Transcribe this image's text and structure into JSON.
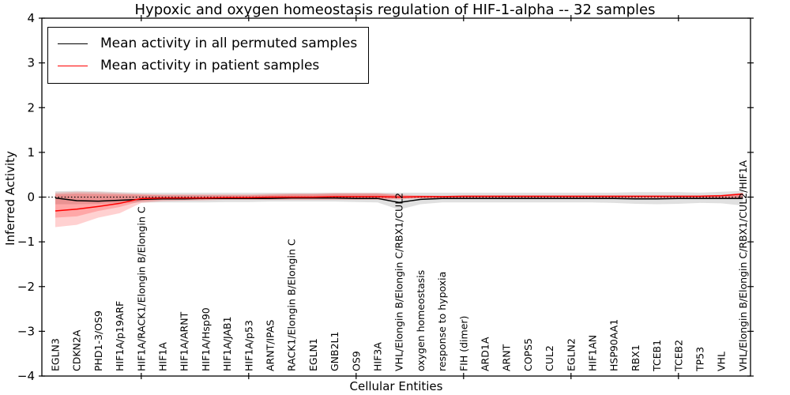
{
  "title": "Hypoxic and oxygen homeostasis regulation of HIF-1-alpha -- 32 samples",
  "axes": {
    "xlabel": "Cellular Entities",
    "ylabel": "Inferred Activity",
    "ylim": [
      -4,
      4
    ],
    "yticks": [
      4,
      3,
      2,
      1,
      0,
      -1,
      -2,
      -3,
      -4
    ],
    "y_tick_labels": [
      "4",
      "3",
      "2",
      "1",
      "0",
      "−1",
      "−2",
      "−3",
      "−4"
    ],
    "x_major_tick_indices": [
      4,
      9,
      14,
      19,
      24,
      29
    ],
    "grid": false
  },
  "legend": {
    "position": "upper left",
    "entries": [
      {
        "label": "Mean activity in all permuted samples",
        "color": "#000000"
      },
      {
        "label": "Mean activity in patient samples",
        "color": "#ff0000"
      }
    ]
  },
  "chart_data": {
    "type": "line",
    "title": "Hypoxic and oxygen homeostasis regulation of HIF-1-alpha -- 32 samples",
    "xlabel": "Cellular Entities",
    "ylabel": "Inferred Activity",
    "ylim": [
      -4,
      4
    ],
    "legend_position": "upper left",
    "grid": false,
    "sample_count_in_title": "32 samples",
    "categories": [
      "EGLN3",
      "CDKN2A",
      "PHD1-3/OS9",
      "HIF1A/p19ARF",
      "HIF1A/RACK1/Elongin B/Elongin C",
      "HIF1A",
      "HIF1A/ARNT",
      "HIF1A/Hsp90",
      "HIF1A/JAB1",
      "HIF1A/p53",
      "ARNT/IPAS",
      "RACK1/Elongin B/Elongin C",
      "EGLN1",
      "GNB2L1",
      "OS9",
      "HIF3A",
      "VHL/Elongin B/Elongin C/RBX1/CUL2",
      "oxygen homeostasis",
      "response to hypoxia",
      "FIH (dimer)",
      "ARD1A",
      "ARNT",
      "COPS5",
      "CUL2",
      "EGLN2",
      "HIF1AN",
      "HSP90AA1",
      "RBX1",
      "TCEB1",
      "TCEB2",
      "TP53",
      "VHL",
      "VHL/Elongin B/Elongin C/RBX1/CUL2/HIF1A"
    ],
    "series": [
      {
        "name": "Mean activity in all permuted samples",
        "color": "#000000",
        "values": [
          -0.02,
          -0.08,
          -0.09,
          -0.07,
          -0.05,
          -0.04,
          -0.04,
          -0.03,
          -0.03,
          -0.03,
          -0.03,
          -0.02,
          -0.02,
          -0.02,
          -0.03,
          -0.03,
          -0.12,
          -0.05,
          -0.03,
          -0.03,
          -0.03,
          -0.03,
          -0.03,
          -0.03,
          -0.03,
          -0.03,
          -0.03,
          -0.04,
          -0.04,
          -0.03,
          -0.03,
          -0.03,
          -0.03
        ]
      },
      {
        "name": "Mean activity in patient samples",
        "color": "#ff0000",
        "values": [
          -0.31,
          -0.27,
          -0.21,
          -0.14,
          -0.03,
          -0.02,
          -0.02,
          -0.02,
          -0.01,
          -0.01,
          0.0,
          0.0,
          0.0,
          0.01,
          0.01,
          0.01,
          0.0,
          0.01,
          0.01,
          0.02,
          0.02,
          0.02,
          0.02,
          0.02,
          0.02,
          0.02,
          0.02,
          0.02,
          0.02,
          0.02,
          0.02,
          0.03,
          0.07
        ]
      }
    ],
    "bands": [
      {
        "name": "permuted-range",
        "color": "#000000",
        "opacity": 0.12,
        "high": [
          0.13,
          0.14,
          0.13,
          0.11,
          0.1,
          0.1,
          0.1,
          0.1,
          0.1,
          0.1,
          0.1,
          0.1,
          0.1,
          0.1,
          0.1,
          0.1,
          0.1,
          0.1,
          0.1,
          0.1,
          0.1,
          0.1,
          0.1,
          0.1,
          0.1,
          0.1,
          0.1,
          0.11,
          0.11,
          0.11,
          0.1,
          0.12,
          0.14
        ],
        "low": [
          -0.16,
          -0.16,
          -0.15,
          -0.13,
          -0.12,
          -0.12,
          -0.12,
          -0.12,
          -0.11,
          -0.11,
          -0.1,
          -0.1,
          -0.1,
          -0.1,
          -0.11,
          -0.12,
          -0.28,
          -0.16,
          -0.12,
          -0.12,
          -0.12,
          -0.12,
          -0.12,
          -0.12,
          -0.12,
          -0.12,
          -0.13,
          -0.15,
          -0.16,
          -0.15,
          -0.13,
          -0.14,
          -0.19
        ]
      },
      {
        "name": "patient-range-outer",
        "color": "#ff0000",
        "opacity": 0.18,
        "high": [
          0.1,
          0.12,
          0.11,
          0.09,
          0.07,
          0.06,
          0.06,
          0.06,
          0.06,
          0.06,
          0.07,
          0.08,
          0.08,
          0.09,
          0.09,
          0.09,
          0.06,
          0.04,
          0.03,
          0.03,
          0.03,
          0.03,
          0.03,
          0.03,
          0.03,
          0.03,
          0.03,
          0.03,
          0.03,
          0.03,
          0.03,
          0.05,
          0.09
        ],
        "low": [
          -0.67,
          -0.62,
          -0.46,
          -0.36,
          -0.13,
          -0.09,
          -0.08,
          -0.07,
          -0.06,
          -0.06,
          -0.06,
          -0.06,
          -0.06,
          -0.06,
          -0.06,
          -0.06,
          -0.05,
          -0.03,
          -0.03,
          -0.03,
          -0.03,
          -0.03,
          -0.03,
          -0.03,
          -0.03,
          -0.03,
          -0.03,
          -0.03,
          -0.03,
          -0.03,
          -0.03,
          -0.03,
          -0.02
        ]
      },
      {
        "name": "patient-range-inner",
        "color": "#ff0000",
        "opacity": 0.2,
        "high": [
          0.06,
          0.08,
          0.07,
          0.06,
          0.05,
          0.04,
          0.04,
          0.04,
          0.04,
          0.04,
          0.05,
          0.06,
          0.06,
          0.07,
          0.07,
          0.07,
          0.04,
          0.02,
          0.02,
          0.02,
          0.02,
          0.02,
          0.02,
          0.02,
          0.02,
          0.02,
          0.02,
          0.02,
          0.02,
          0.02,
          0.02,
          0.03,
          0.06
        ],
        "low": [
          -0.46,
          -0.43,
          -0.31,
          -0.22,
          -0.09,
          -0.06,
          -0.05,
          -0.05,
          -0.04,
          -0.04,
          -0.04,
          -0.04,
          -0.04,
          -0.04,
          -0.04,
          -0.04,
          -0.03,
          -0.02,
          -0.02,
          -0.02,
          -0.02,
          -0.02,
          -0.02,
          -0.02,
          -0.02,
          -0.02,
          -0.02,
          -0.02,
          -0.02,
          -0.02,
          -0.02,
          -0.02,
          -0.01
        ]
      }
    ],
    "zero_line": {
      "y": 0,
      "style": "dotted",
      "color": "#000000"
    }
  }
}
